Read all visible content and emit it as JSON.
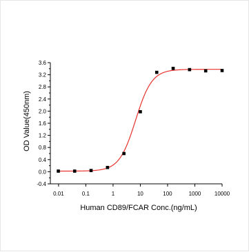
{
  "chart_data": {
    "type": "scatter",
    "title": "",
    "xlabel": "Human CD89/FCAR Conc.(ng/mL)",
    "ylabel": "OD Value(450nm)",
    "x_scale": "log",
    "xlim": [
      0.005,
      10000
    ],
    "ylim": [
      -0.4,
      3.6
    ],
    "x_ticks": [
      0.01,
      0.1,
      1,
      10,
      100,
      1000,
      10000
    ],
    "x_tick_labels": [
      "0.01",
      "0.1",
      "1",
      "10",
      "100",
      "1000",
      "10000"
    ],
    "y_ticks": [
      -0.4,
      0.0,
      0.4,
      0.8,
      1.2,
      1.6,
      2.0,
      2.4,
      2.8,
      3.2,
      3.6
    ],
    "y_tick_labels": [
      "-0.4",
      "0.0",
      "0.4",
      "0.8",
      "1.2",
      "1.6",
      "2.0",
      "2.4",
      "2.8",
      "3.2",
      "3.6"
    ],
    "grid": false,
    "series": [
      {
        "type": "scatter",
        "marker": "square",
        "color": "#000000",
        "points": [
          {
            "x": 0.0098,
            "y": 0.02
          },
          {
            "x": 0.039,
            "y": 0.02
          },
          {
            "x": 0.156,
            "y": 0.04
          },
          {
            "x": 0.625,
            "y": 0.14
          },
          {
            "x": 2.5,
            "y": 0.6
          },
          {
            "x": 10,
            "y": 1.98
          },
          {
            "x": 40,
            "y": 3.28
          },
          {
            "x": 160,
            "y": 3.41
          },
          {
            "x": 640,
            "y": 3.37
          },
          {
            "x": 2500,
            "y": 3.33
          },
          {
            "x": 10000,
            "y": 3.34
          }
        ]
      },
      {
        "type": "line",
        "style": "four-parameter logistic fit",
        "color": "#e8322d",
        "fit": {
          "bottom": 0.02,
          "top": 3.38,
          "ec50": 6.7,
          "hill": 1.45
        }
      }
    ]
  }
}
